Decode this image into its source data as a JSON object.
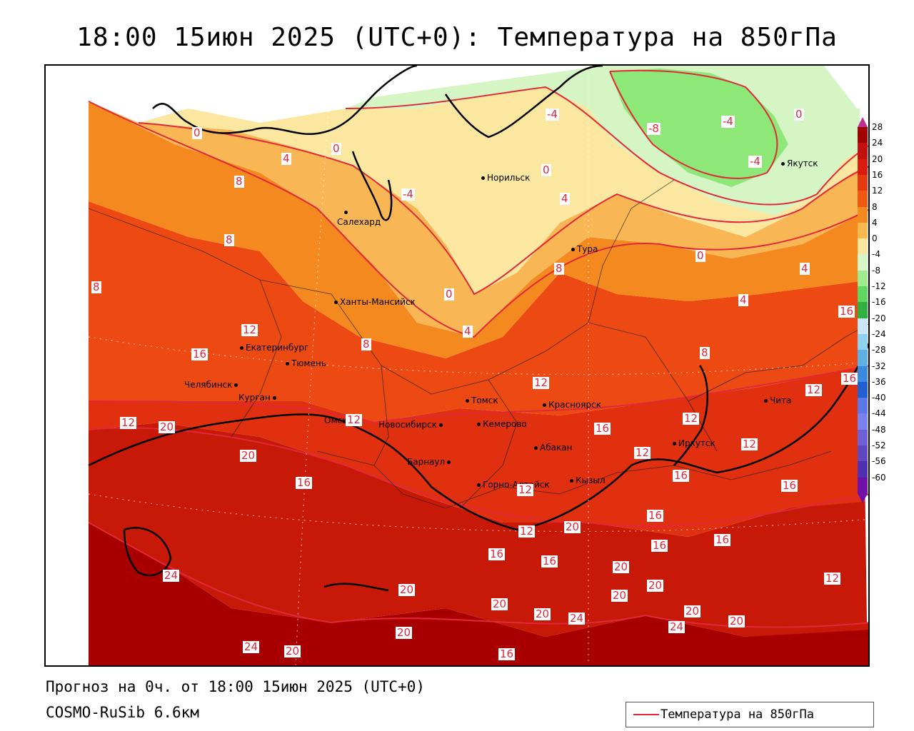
{
  "title": "18:00 15июн 2025 (UTC+0): Температура на 850гПа",
  "footer": {
    "forecast": "Прогноз на 0ч. от 18:00 15июн 2025 (UTC+0)",
    "model": "COSMO-RuSib 6.6км"
  },
  "legend": {
    "label": "Температура на 850гПа",
    "line_color": "#e0283a"
  },
  "scale": {
    "ticks": [
      "28",
      "24",
      "20",
      "16",
      "12",
      "8",
      "4",
      "0",
      "-4",
      "-8",
      "-12",
      "-16",
      "-20",
      "-24",
      "-28",
      "-32",
      "-36",
      "-40",
      "-44",
      "-48",
      "-52",
      "-56",
      "-60"
    ],
    "colors": [
      "#a00000",
      "#c01010",
      "#d81c10",
      "#e83810",
      "#f05a10",
      "#f38a20",
      "#f7b850",
      "#fbe6a0",
      "#d8f5c8",
      "#a0eb90",
      "#60d860",
      "#30b040",
      "#c8e6f8",
      "#90d0f0",
      "#60b0e8",
      "#3a8ae0",
      "#2060d0",
      "#5a78e8",
      "#7a80ee",
      "#7060d8",
      "#6048c0",
      "#5030b0",
      "#7010a8"
    ]
  },
  "cities": [
    {
      "name": "Норильск"
    },
    {
      "name": "Салехард"
    },
    {
      "name": "Тура"
    },
    {
      "name": "Якутск"
    },
    {
      "name": "Ханты-Мансийск"
    },
    {
      "name": "Екатеринбург"
    },
    {
      "name": "Тюмень"
    },
    {
      "name": "Челябинск"
    },
    {
      "name": "Курган"
    },
    {
      "name": "Омск"
    },
    {
      "name": "Новосибирск"
    },
    {
      "name": "Томск"
    },
    {
      "name": "Кемерово"
    },
    {
      "name": "Красноярск"
    },
    {
      "name": "Барнаул"
    },
    {
      "name": "Абакан"
    },
    {
      "name": "Горно-Алтайск"
    },
    {
      "name": "Кызыл"
    },
    {
      "name": "Иркутск"
    },
    {
      "name": "Чита"
    }
  ],
  "isotherm_labels": [
    "0",
    "4",
    "0",
    "-4",
    "-8",
    "-4",
    "0",
    "-4",
    "8",
    "0",
    "-4",
    "4",
    "8",
    "0",
    "4",
    "8",
    "4",
    "0",
    "4",
    "8",
    "12",
    "16",
    "8",
    "8",
    "12",
    "16",
    "12",
    "20",
    "12",
    "12",
    "16",
    "12",
    "12",
    "12",
    "20",
    "16",
    "16",
    "16",
    "12",
    "12",
    "16",
    "20",
    "16",
    "16",
    "16",
    "20",
    "16",
    "24",
    "20",
    "20",
    "20",
    "20",
    "20",
    "20",
    "24",
    "24",
    "20",
    "20",
    "12",
    "24",
    "20",
    "16",
    "16"
  ],
  "colors": {
    "isotherm": "#e0283a",
    "background": "#ffffff"
  }
}
